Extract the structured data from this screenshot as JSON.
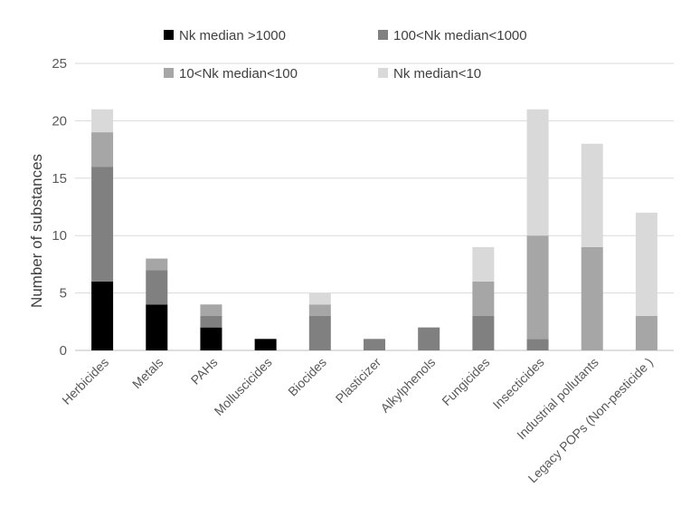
{
  "chart_data": {
    "type": "bar",
    "stacked": true,
    "categories": [
      "Herbicides",
      "Metals",
      "PAHs",
      "Molluscicides",
      "Biocides",
      "Plasticizer",
      "Alkylphenols",
      "Fungicides",
      "Insecticides",
      "Industrial pollutants",
      "Legacy POPs (Non-pesticide )"
    ],
    "series": [
      {
        "name": "Nk median >1000",
        "color": "#000000",
        "values": [
          6,
          4,
          2,
          1,
          0,
          0,
          0,
          0,
          0,
          0,
          0
        ]
      },
      {
        "name": "100<Nk median<1000",
        "color": "#808080",
        "values": [
          10,
          3,
          1,
          0,
          3,
          1,
          2,
          3,
          1,
          0,
          0
        ]
      },
      {
        "name": "10<Nk median<100",
        "color": "#a6a6a6",
        "values": [
          3,
          1,
          1,
          0,
          1,
          0,
          0,
          3,
          9,
          9,
          3
        ]
      },
      {
        "name": "Nk median<10",
        "color": "#d9d9d9",
        "values": [
          2,
          0,
          0,
          0,
          1,
          0,
          0,
          3,
          11,
          9,
          9
        ]
      }
    ],
    "yticks": [
      0,
      5,
      10,
      15,
      20,
      25
    ],
    "ylim": [
      0,
      25
    ],
    "title": "",
    "xlabel": "",
    "ylabel": "Number of substances",
    "grid": "horizontal",
    "legend_position": "top"
  }
}
